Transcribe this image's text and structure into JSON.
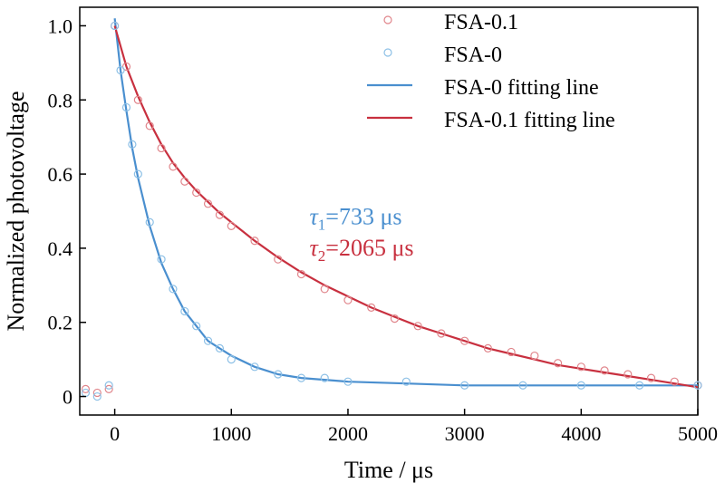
{
  "chart_data": {
    "type": "scatter",
    "xlabel": "Time / μs",
    "ylabel": "Normalized photovoltage",
    "xlim": [
      -300,
      5000
    ],
    "ylim": [
      -0.05,
      1.05
    ],
    "x_ticks": [
      0,
      1000,
      2000,
      3000,
      4000,
      5000
    ],
    "y_ticks": [
      0,
      0.2,
      0.4,
      0.6,
      0.8,
      1.0
    ],
    "x_tick_labels": [
      "0",
      "1000",
      "2000",
      "3000",
      "4000",
      "5000"
    ],
    "y_tick_labels": [
      "0",
      "0.2",
      "0.4",
      "0.6",
      "0.8",
      "1.0"
    ],
    "grid": false,
    "legend_position": "top-right",
    "series": [
      {
        "name": "FSA-0.1",
        "kind": "scatter",
        "color": "#e0858b",
        "marker": "open-circle",
        "x": [
          -250,
          -150,
          -50,
          0,
          100,
          200,
          300,
          400,
          500,
          600,
          700,
          800,
          900,
          1000,
          1200,
          1400,
          1600,
          1800,
          2000,
          2200,
          2400,
          2600,
          2800,
          3000,
          3200,
          3400,
          3600,
          3800,
          4000,
          4200,
          4400,
          4600,
          4800,
          5000
        ],
        "y": [
          0.02,
          0.01,
          0.02,
          1.0,
          0.89,
          0.8,
          0.73,
          0.67,
          0.62,
          0.58,
          0.55,
          0.52,
          0.49,
          0.46,
          0.42,
          0.37,
          0.33,
          0.29,
          0.26,
          0.24,
          0.21,
          0.19,
          0.17,
          0.15,
          0.13,
          0.12,
          0.11,
          0.09,
          0.08,
          0.07,
          0.06,
          0.05,
          0.04,
          0.03
        ]
      },
      {
        "name": "FSA-0",
        "kind": "scatter",
        "color": "#8dc0e6",
        "marker": "open-circle",
        "x": [
          -250,
          -150,
          -50,
          0,
          50,
          100,
          150,
          200,
          300,
          400,
          500,
          600,
          700,
          800,
          900,
          1000,
          1200,
          1400,
          1600,
          1800,
          2000,
          2500,
          3000,
          3500,
          4000,
          4500,
          5000
        ],
        "y": [
          0.01,
          0.0,
          0.03,
          1.0,
          0.88,
          0.78,
          0.68,
          0.6,
          0.47,
          0.37,
          0.29,
          0.23,
          0.19,
          0.15,
          0.13,
          0.1,
          0.08,
          0.06,
          0.05,
          0.05,
          0.04,
          0.04,
          0.03,
          0.03,
          0.03,
          0.03,
          0.03
        ]
      },
      {
        "name": "FSA-0 fitting line",
        "kind": "line",
        "color": "#4a8fcf",
        "x": [
          0,
          50,
          100,
          150,
          200,
          300,
          400,
          500,
          600,
          700,
          800,
          900,
          1000,
          1200,
          1400,
          1600,
          1800,
          2000,
          2500,
          3000,
          3500,
          4000,
          4500,
          5000
        ],
        "y": [
          1.02,
          0.88,
          0.77,
          0.67,
          0.59,
          0.46,
          0.36,
          0.29,
          0.23,
          0.19,
          0.15,
          0.13,
          0.11,
          0.08,
          0.06,
          0.05,
          0.045,
          0.04,
          0.035,
          0.03,
          0.03,
          0.03,
          0.03,
          0.03
        ]
      },
      {
        "name": "FSA-0.1 fitting line",
        "kind": "line",
        "color": "#c8303f",
        "x": [
          0,
          100,
          200,
          300,
          400,
          500,
          600,
          700,
          800,
          900,
          1000,
          1200,
          1400,
          1600,
          1800,
          2000,
          2200,
          2400,
          2600,
          2800,
          3000,
          3200,
          3400,
          3600,
          3800,
          4000,
          4200,
          4400,
          4600,
          4800,
          5000
        ],
        "y": [
          1.0,
          0.89,
          0.81,
          0.74,
          0.68,
          0.63,
          0.59,
          0.555,
          0.525,
          0.495,
          0.47,
          0.42,
          0.375,
          0.335,
          0.3,
          0.27,
          0.24,
          0.215,
          0.19,
          0.17,
          0.15,
          0.13,
          0.115,
          0.1,
          0.085,
          0.075,
          0.065,
          0.055,
          0.045,
          0.035,
          0.025
        ]
      }
    ],
    "annotations": [
      {
        "tau": "τ",
        "sub": "1",
        "rest": "=733 μs",
        "color": "#4a8fcf",
        "x": 1670,
        "y": 0.465
      },
      {
        "tau": "τ",
        "sub": "2",
        "rest": "=2065 μs",
        "color": "#c8303f",
        "x": 1670,
        "y": 0.38
      }
    ]
  }
}
